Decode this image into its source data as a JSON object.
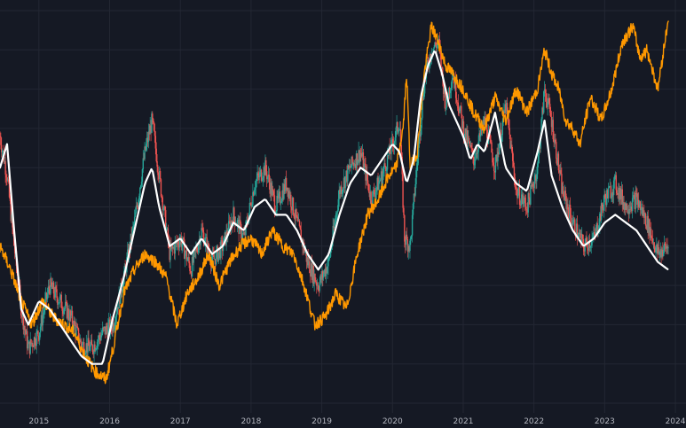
{
  "chart_data": {
    "type": "line",
    "x_ticks": [
      "2015",
      "2016",
      "2017",
      "2018",
      "2019",
      "2020",
      "2021",
      "2022",
      "2023",
      "2024"
    ],
    "xlim": [
      2014.45,
      2024.15
    ],
    "ylim": [
      0,
      100
    ],
    "grid": true,
    "legend": "none",
    "colors": {
      "background": "#151924",
      "grid": "#232733",
      "candle_up": "#26a69a",
      "candle_down": "#ef5350",
      "orange_line": "#ff9800",
      "white_line": "#ffffff",
      "tick_text": "#b2b5be"
    },
    "series": [
      {
        "kind": "candlestick",
        "x": [
          2014.45,
          2014.55,
          2014.65,
          2014.75,
          2014.85,
          2015.0,
          2015.15,
          2015.3,
          2015.45,
          2015.6,
          2015.75,
          2015.9,
          2016.05,
          2016.2,
          2016.35,
          2016.5,
          2016.6,
          2016.7,
          2016.85,
          2017.0,
          2017.15,
          2017.3,
          2017.45,
          2017.6,
          2017.75,
          2017.9,
          2018.05,
          2018.2,
          2018.35,
          2018.5,
          2018.65,
          2018.8,
          2018.95,
          2019.1,
          2019.25,
          2019.4,
          2019.55,
          2019.7,
          2019.85,
          2020.0,
          2020.1,
          2020.17,
          2020.25,
          2020.35,
          2020.45,
          2020.55,
          2020.65,
          2020.75,
          2020.85,
          2021.0,
          2021.15,
          2021.3,
          2021.45,
          2021.6,
          2021.75,
          2021.9,
          2022.05,
          2022.15,
          2022.25,
          2022.4,
          2022.55,
          2022.7,
          2022.85,
          2023.0,
          2023.15,
          2023.3,
          2023.45,
          2023.6,
          2023.75,
          2023.9
        ],
        "y": [
          68,
          58,
          40,
          24,
          14,
          18,
          30,
          26,
          22,
          15,
          14,
          18,
          20,
          32,
          46,
          64,
          72,
          58,
          38,
          42,
          34,
          44,
          36,
          40,
          48,
          42,
          56,
          60,
          50,
          56,
          46,
          36,
          30,
          36,
          54,
          60,
          64,
          52,
          58,
          66,
          72,
          42,
          40,
          62,
          82,
          90,
          92,
          76,
          84,
          70,
          62,
          72,
          60,
          76,
          54,
          50,
          60,
          80,
          72,
          54,
          46,
          40,
          42,
          52,
          56,
          50,
          52,
          46,
          38,
          40
        ]
      },
      {
        "kind": "line",
        "name": "",
        "x": [
          2014.45,
          2014.6,
          2014.75,
          2014.9,
          2015.05,
          2015.2,
          2015.35,
          2015.5,
          2015.65,
          2015.8,
          2015.95,
          2016.05,
          2016.2,
          2016.35,
          2016.5,
          2016.65,
          2016.8,
          2016.95,
          2017.1,
          2017.25,
          2017.4,
          2017.55,
          2017.7,
          2017.85,
          2018.0,
          2018.15,
          2018.3,
          2018.45,
          2018.6,
          2018.75,
          2018.9,
          2019.05,
          2019.2,
          2019.35,
          2019.5,
          2019.65,
          2019.8,
          2019.95,
          2020.05,
          2020.15,
          2020.2,
          2020.25,
          2020.35,
          2020.45,
          2020.55,
          2020.65,
          2020.75,
          2020.85,
          2021.0,
          2021.15,
          2021.3,
          2021.45,
          2021.6,
          2021.75,
          2021.9,
          2022.05,
          2022.15,
          2022.25,
          2022.35,
          2022.45,
          2022.55,
          2022.65,
          2022.8,
          2022.95,
          2023.1,
          2023.25,
          2023.4,
          2023.5,
          2023.6,
          2023.75,
          2023.9
        ],
        "y": [
          40,
          34,
          26,
          20,
          26,
          22,
          20,
          18,
          12,
          8,
          6,
          14,
          28,
          34,
          38,
          36,
          32,
          20,
          28,
          32,
          38,
          30,
          36,
          40,
          42,
          38,
          44,
          40,
          38,
          30,
          20,
          22,
          28,
          24,
          38,
          48,
          52,
          58,
          60,
          70,
          84,
          60,
          64,
          84,
          96,
          92,
          86,
          84,
          80,
          74,
          70,
          78,
          72,
          80,
          74,
          80,
          90,
          84,
          80,
          72,
          70,
          66,
          78,
          72,
          80,
          92,
          96,
          88,
          90,
          80,
          98
        ]
      },
      {
        "kind": "line",
        "name": "",
        "x": [
          2014.45,
          2014.55,
          2014.65,
          2014.75,
          2014.85,
          2015.0,
          2015.15,
          2015.3,
          2015.45,
          2015.6,
          2015.75,
          2015.9,
          2016.05,
          2016.2,
          2016.35,
          2016.5,
          2016.6,
          2016.7,
          2016.85,
          2017.0,
          2017.15,
          2017.3,
          2017.45,
          2017.6,
          2017.75,
          2017.9,
          2018.05,
          2018.2,
          2018.35,
          2018.5,
          2018.65,
          2018.8,
          2018.95,
          2019.1,
          2019.25,
          2019.4,
          2019.55,
          2019.7,
          2019.85,
          2020.0,
          2020.1,
          2020.2,
          2020.3,
          2020.4,
          2020.5,
          2020.6,
          2020.7,
          2020.8,
          2020.9,
          2021.0,
          2021.1,
          2021.2,
          2021.3,
          2021.45,
          2021.6,
          2021.75,
          2021.9,
          2022.05,
          2022.15,
          2022.25,
          2022.4,
          2022.55,
          2022.7,
          2022.85,
          2023.0,
          2023.15,
          2023.3,
          2023.45,
          2023.6,
          2023.75,
          2023.9
        ],
        "y": [
          60,
          66,
          44,
          24,
          20,
          26,
          24,
          20,
          16,
          12,
          10,
          10,
          22,
          32,
          44,
          56,
          60,
          50,
          40,
          42,
          38,
          42,
          38,
          40,
          46,
          44,
          50,
          52,
          48,
          48,
          44,
          38,
          34,
          38,
          48,
          56,
          60,
          58,
          62,
          66,
          64,
          56,
          62,
          78,
          86,
          90,
          84,
          76,
          72,
          68,
          62,
          66,
          64,
          74,
          60,
          56,
          54,
          64,
          72,
          58,
          50,
          44,
          40,
          42,
          46,
          48,
          46,
          44,
          40,
          36,
          34
        ]
      }
    ]
  }
}
